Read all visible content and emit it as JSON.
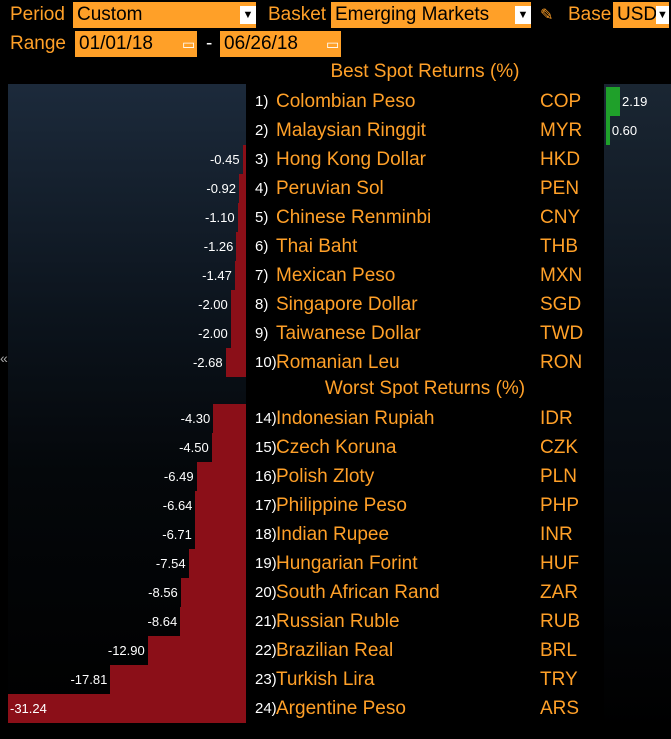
{
  "toolbar": {
    "period_label": "Period",
    "period_value": "Custom",
    "basket_label": "Basket",
    "basket_value": "Emerging Markets",
    "base_label": "Base",
    "base_value": "USD",
    "range_label": "Range",
    "range_start": "01/01/18",
    "range_separator": "-",
    "range_end": "06/26/18"
  },
  "sections": {
    "best_header": "Best Spot Returns (%)",
    "worst_header": "Worst Spot Returns (%)"
  },
  "side_collapse_glyph": "«",
  "colors": {
    "accent": "#ffa028",
    "negative_bar": "#8b0f18",
    "positive_bar": "#1fa02a"
  },
  "chart_data": {
    "type": "bar",
    "title": "",
    "best": [
      {
        "rank": "1)",
        "name": "Colombian Peso",
        "code": "COP",
        "value": 2.19,
        "label": "2.19"
      },
      {
        "rank": "2)",
        "name": "Malaysian Ringgit",
        "code": "MYR",
        "value": 0.6,
        "label": "0.60"
      },
      {
        "rank": "3)",
        "name": "Hong Kong Dollar",
        "code": "HKD",
        "value": -0.45,
        "label": "-0.45"
      },
      {
        "rank": "4)",
        "name": "Peruvian Sol",
        "code": "PEN",
        "value": -0.92,
        "label": "-0.92"
      },
      {
        "rank": "5)",
        "name": "Chinese Renminbi",
        "code": "CNY",
        "value": -1.1,
        "label": "-1.10"
      },
      {
        "rank": "6)",
        "name": "Thai Baht",
        "code": "THB",
        "value": -1.26,
        "label": "-1.26"
      },
      {
        "rank": "7)",
        "name": "Mexican Peso",
        "code": "MXN",
        "value": -1.47,
        "label": "-1.47"
      },
      {
        "rank": "8)",
        "name": "Singapore Dollar",
        "code": "SGD",
        "value": -2.0,
        "label": "-2.00"
      },
      {
        "rank": "9)",
        "name": "Taiwanese Dollar",
        "code": "TWD",
        "value": -2.0,
        "label": "-2.00"
      },
      {
        "rank": "10)",
        "name": "Romanian Leu",
        "code": "RON",
        "value": -2.68,
        "label": "-2.68"
      }
    ],
    "worst": [
      {
        "rank": "14)",
        "name": "Indonesian Rupiah",
        "code": "IDR",
        "value": -4.3,
        "label": "-4.30"
      },
      {
        "rank": "15)",
        "name": "Czech Koruna",
        "code": "CZK",
        "value": -4.5,
        "label": "-4.50"
      },
      {
        "rank": "16)",
        "name": "Polish Zloty",
        "code": "PLN",
        "value": -6.49,
        "label": "-6.49"
      },
      {
        "rank": "17)",
        "name": "Philippine Peso",
        "code": "PHP",
        "value": -6.64,
        "label": "-6.64"
      },
      {
        "rank": "18)",
        "name": "Indian Rupee",
        "code": "INR",
        "value": -6.71,
        "label": "-6.71"
      },
      {
        "rank": "19)",
        "name": "Hungarian Forint",
        "code": "HUF",
        "value": -7.54,
        "label": "-7.54"
      },
      {
        "rank": "20)",
        "name": "South African Rand",
        "code": "ZAR",
        "value": -8.56,
        "label": "-8.56"
      },
      {
        "rank": "21)",
        "name": "Russian Ruble",
        "code": "RUB",
        "value": -8.64,
        "label": "-8.64"
      },
      {
        "rank": "22)",
        "name": "Brazilian Real",
        "code": "BRL",
        "value": -12.9,
        "label": "-12.90"
      },
      {
        "rank": "23)",
        "name": "Turkish Lira",
        "code": "TRY",
        "value": -17.81,
        "label": "-17.81"
      },
      {
        "rank": "24)",
        "name": "Argentine Peso",
        "code": "ARS",
        "value": -31.24,
        "label": "-31.24"
      }
    ]
  }
}
